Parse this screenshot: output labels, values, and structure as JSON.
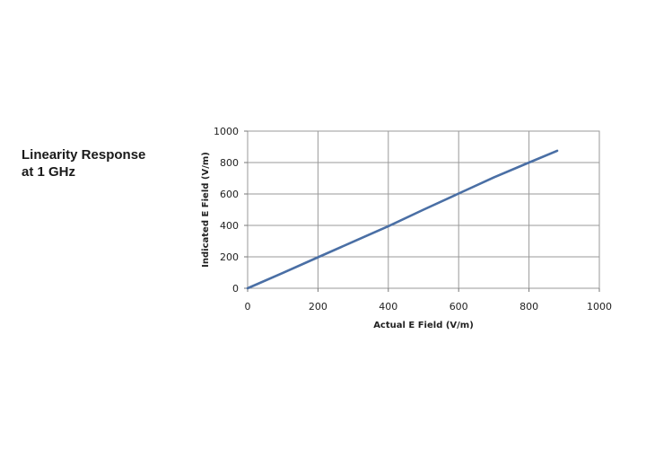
{
  "heading": {
    "line1": "Linearity Response",
    "line2": "at 1 GHz"
  },
  "chart_data": {
    "type": "line",
    "title": "",
    "xlabel": "Actual E Field (V/m)",
    "ylabel": "Indicated E Field (V/m)",
    "xlim": [
      0,
      1000
    ],
    "ylim": [
      0,
      1000
    ],
    "x_ticks": [
      0,
      200,
      400,
      600,
      800,
      1000
    ],
    "y_ticks": [
      0,
      200,
      400,
      600,
      800,
      1000
    ],
    "grid": true,
    "legend": "none",
    "series": [
      {
        "color": "#4a6fa5",
        "x": [
          0,
          100,
          200,
          300,
          400,
          500,
          600,
          700,
          800,
          880
        ],
        "y": [
          0,
          98,
          197,
          296,
          395,
          500,
          603,
          705,
          800,
          875
        ]
      }
    ]
  }
}
